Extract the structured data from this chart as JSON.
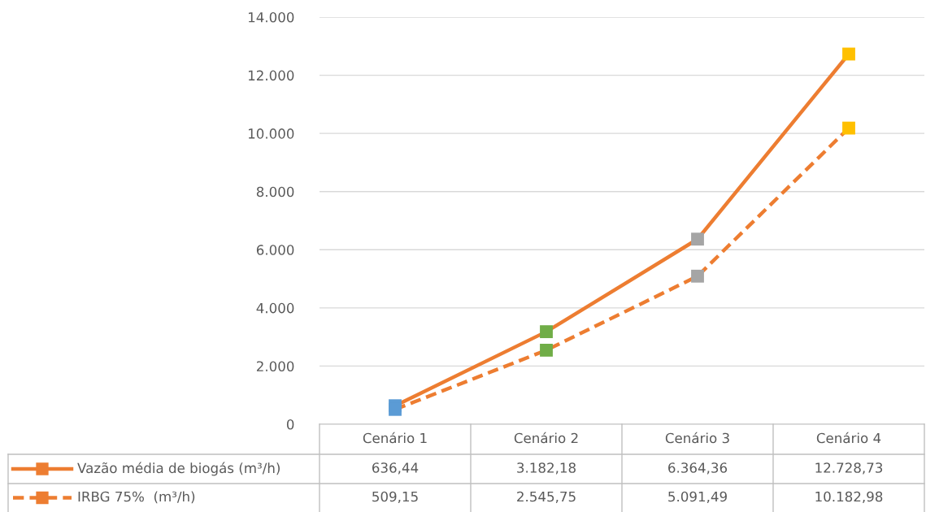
{
  "chart_data": {
    "type": "line",
    "categories": [
      "Cenário 1",
      "Cenário 2",
      "Cenário 3",
      "Cenário 4"
    ],
    "series": [
      {
        "name": "Vazão média de biogás (m³/h)",
        "color": "#ed7d31",
        "line_style": "solid",
        "values": [
          636.44,
          3182.18,
          6364.36,
          12728.73
        ],
        "value_labels": [
          "636,44",
          "3.182,18",
          "6.364,36",
          "12.728,73"
        ]
      },
      {
        "name": "IRBG 75%  (m³/h)",
        "color": "#ed7d31",
        "line_style": "dashed",
        "values": [
          509.15,
          2545.75,
          5091.49,
          10182.98
        ],
        "value_labels": [
          "509,15",
          "2.545,75",
          "5.091,49",
          "10.182,98"
        ]
      }
    ],
    "colors": [
      "#5b9bd5",
      "#70ad47",
      "#a5a5a5",
      "#ffc000"
    ],
    "marker": "square",
    "ylim": [
      0,
      14000
    ],
    "yticks": [
      0,
      {
        "value": 2000,
        "label": "2.000"
      },
      {
        "value": 4000,
        "label": "4.000"
      },
      {
        "value": 6000,
        "label": "6.000"
      },
      {
        "value": 8000,
        "label": "8.000"
      },
      {
        "value": 10000,
        "label": "10.000"
      },
      {
        "value": 12000,
        "label": "12.000"
      },
      {
        "value": 14000,
        "label": "14.000"
      }
    ],
    "grid": "y",
    "legend": "bottom"
  }
}
